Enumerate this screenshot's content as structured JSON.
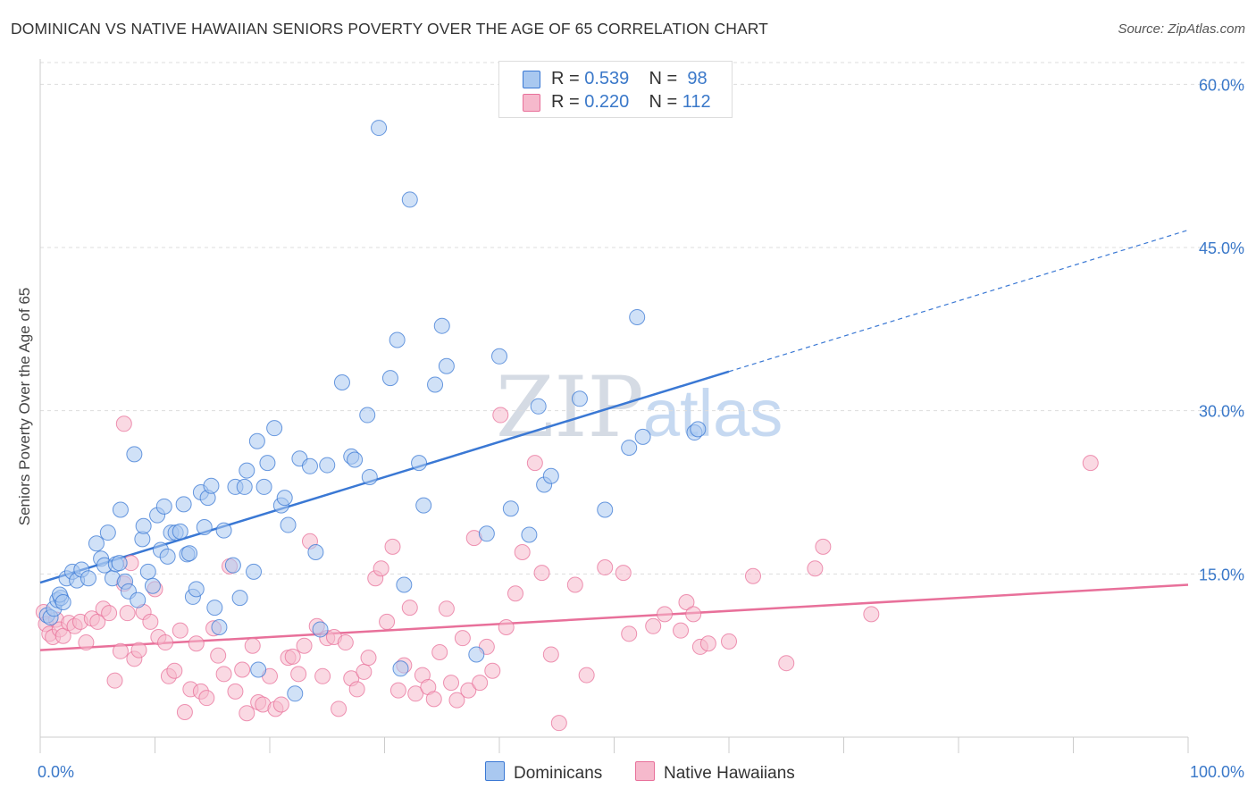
{
  "title": "DOMINICAN VS NATIVE HAWAIIAN SENIORS POVERTY OVER THE AGE OF 65 CORRELATION CHART",
  "source": "Source: ZipAtlas.com",
  "watermark": {
    "zip": "ZIP",
    "atlas": "atlas"
  },
  "legend": {
    "row1": {
      "r_label": "R = ",
      "r_value": "0.539",
      "n_label": "N = ",
      "n_value": "98"
    },
    "row2": {
      "r_label": "R = ",
      "r_value": "0.220",
      "n_label": "N = ",
      "n_value": "112"
    }
  },
  "bottom_legend": {
    "dominicans": "Dominicans",
    "native_hawaiians": "Native Hawaiians"
  },
  "colors": {
    "blue": "#3a78d4",
    "blue_fill": "#a9c8f0",
    "pink": "#e8709a",
    "pink_fill": "#f6b9cc",
    "axis_text": "#3a78c9",
    "grid": "#dddddd"
  },
  "chart_data": {
    "type": "scatter",
    "title": "DOMINICAN VS NATIVE HAWAIIAN SENIORS POVERTY OVER THE AGE OF 65 CORRELATION CHART",
    "xlabel": "",
    "ylabel": "Seniors Poverty Over the Age of 65",
    "xlim": [
      0,
      100
    ],
    "ylim": [
      0,
      62
    ],
    "x_tick_labels": [
      "0.0%",
      "100.0%"
    ],
    "y_ticks": [
      15,
      30,
      45,
      60
    ],
    "y_tick_labels": [
      "15.0%",
      "30.0%",
      "45.0%",
      "60.0%"
    ],
    "grid": true,
    "series": [
      {
        "name": "Dominicans",
        "R": 0.539,
        "N": 98,
        "trend": {
          "x0": 0,
          "y0": 14.2,
          "x1": 60,
          "y1": 33.6,
          "dashed_to_x": 100,
          "dashed_to_y": 46.6
        },
        "points": [
          [
            0.6,
            11.2
          ],
          [
            0.9,
            11.0
          ],
          [
            1.2,
            11.8
          ],
          [
            1.5,
            12.6
          ],
          [
            1.8,
            12.8
          ],
          [
            1.7,
            13.1
          ],
          [
            2.0,
            12.4
          ],
          [
            2.3,
            14.6
          ],
          [
            2.8,
            15.2
          ],
          [
            3.2,
            14.4
          ],
          [
            3.6,
            15.4
          ],
          [
            4.2,
            14.6
          ],
          [
            4.9,
            17.8
          ],
          [
            5.3,
            16.4
          ],
          [
            5.6,
            15.8
          ],
          [
            5.9,
            18.8
          ],
          [
            6.3,
            14.6
          ],
          [
            6.6,
            15.9
          ],
          [
            6.9,
            16.0
          ],
          [
            7.0,
            20.9
          ],
          [
            7.4,
            14.3
          ],
          [
            7.7,
            13.4
          ],
          [
            8.2,
            26.0
          ],
          [
            8.5,
            12.6
          ],
          [
            8.9,
            18.2
          ],
          [
            9.0,
            19.4
          ],
          [
            9.4,
            15.2
          ],
          [
            9.8,
            13.9
          ],
          [
            10.2,
            20.4
          ],
          [
            10.5,
            17.2
          ],
          [
            10.8,
            21.2
          ],
          [
            11.1,
            16.6
          ],
          [
            11.4,
            18.8
          ],
          [
            11.8,
            18.8
          ],
          [
            12.2,
            18.9
          ],
          [
            12.5,
            21.4
          ],
          [
            12.8,
            16.8
          ],
          [
            13.0,
            16.9
          ],
          [
            13.3,
            12.9
          ],
          [
            13.6,
            13.6
          ],
          [
            14.0,
            22.5
          ],
          [
            14.3,
            19.3
          ],
          [
            14.6,
            22.0
          ],
          [
            14.9,
            23.1
          ],
          [
            15.2,
            11.9
          ],
          [
            15.6,
            10.1
          ],
          [
            16.0,
            19.0
          ],
          [
            16.8,
            15.8
          ],
          [
            17.0,
            23.0
          ],
          [
            17.4,
            12.8
          ],
          [
            17.8,
            23.0
          ],
          [
            18.0,
            24.5
          ],
          [
            18.6,
            15.2
          ],
          [
            18.9,
            27.2
          ],
          [
            19.0,
            6.2
          ],
          [
            19.5,
            23.0
          ],
          [
            19.8,
            25.2
          ],
          [
            20.4,
            28.4
          ],
          [
            21.0,
            21.3
          ],
          [
            21.3,
            22.0
          ],
          [
            21.6,
            19.5
          ],
          [
            22.2,
            4.0
          ],
          [
            22.6,
            25.6
          ],
          [
            23.5,
            24.9
          ],
          [
            24.0,
            17.0
          ],
          [
            24.4,
            9.9
          ],
          [
            25.0,
            25.0
          ],
          [
            26.3,
            32.6
          ],
          [
            27.1,
            25.8
          ],
          [
            27.4,
            25.5
          ],
          [
            28.5,
            29.6
          ],
          [
            28.7,
            23.9
          ],
          [
            29.5,
            56.0
          ],
          [
            30.5,
            33.0
          ],
          [
            31.1,
            36.5
          ],
          [
            31.4,
            6.3
          ],
          [
            31.7,
            14.0
          ],
          [
            32.2,
            49.4
          ],
          [
            33.0,
            25.2
          ],
          [
            33.4,
            21.3
          ],
          [
            34.4,
            32.4
          ],
          [
            35.0,
            37.8
          ],
          [
            35.4,
            34.1
          ],
          [
            38.0,
            7.6
          ],
          [
            38.9,
            18.7
          ],
          [
            40.0,
            35.0
          ],
          [
            41.0,
            21.0
          ],
          [
            42.6,
            18.6
          ],
          [
            43.4,
            30.4
          ],
          [
            43.9,
            23.2
          ],
          [
            44.5,
            24.0
          ],
          [
            47.0,
            31.1
          ],
          [
            49.2,
            20.9
          ],
          [
            51.3,
            26.6
          ],
          [
            52.0,
            38.6
          ],
          [
            52.5,
            27.6
          ],
          [
            57.0,
            28.0
          ],
          [
            57.3,
            28.3
          ]
        ]
      },
      {
        "name": "Native Hawaiians",
        "R": 0.22,
        "N": 112,
        "trend": {
          "x0": 0,
          "y0": 8.0,
          "x1": 100,
          "y1": 14.0
        },
        "points": [
          [
            0.3,
            11.5
          ],
          [
            0.5,
            10.4
          ],
          [
            0.8,
            9.5
          ],
          [
            1.1,
            9.2
          ],
          [
            1.4,
            10.8
          ],
          [
            1.7,
            9.9
          ],
          [
            2.0,
            9.3
          ],
          [
            2.5,
            10.5
          ],
          [
            3.0,
            10.2
          ],
          [
            3.5,
            10.6
          ],
          [
            4.0,
            8.7
          ],
          [
            4.5,
            10.9
          ],
          [
            5.0,
            10.6
          ],
          [
            5.5,
            11.8
          ],
          [
            6.0,
            11.4
          ],
          [
            6.5,
            5.2
          ],
          [
            7.0,
            7.9
          ],
          [
            7.3,
            14.1
          ],
          [
            7.6,
            11.4
          ],
          [
            7.9,
            16.0
          ],
          [
            8.2,
            7.2
          ],
          [
            8.6,
            8.0
          ],
          [
            9.0,
            11.5
          ],
          [
            9.6,
            10.6
          ],
          [
            10.0,
            13.6
          ],
          [
            10.3,
            9.2
          ],
          [
            10.9,
            8.7
          ],
          [
            11.2,
            5.6
          ],
          [
            11.7,
            6.1
          ],
          [
            12.2,
            9.8
          ],
          [
            12.6,
            2.3
          ],
          [
            13.1,
            4.4
          ],
          [
            13.6,
            8.6
          ],
          [
            14.0,
            4.2
          ],
          [
            14.5,
            3.6
          ],
          [
            15.1,
            10.0
          ],
          [
            15.5,
            7.5
          ],
          [
            16.0,
            5.8
          ],
          [
            16.5,
            15.7
          ],
          [
            17.0,
            4.2
          ],
          [
            17.6,
            6.2
          ],
          [
            18.0,
            2.2
          ],
          [
            18.5,
            8.4
          ],
          [
            19.0,
            3.2
          ],
          [
            19.4,
            3.0
          ],
          [
            20.0,
            5.6
          ],
          [
            20.5,
            2.6
          ],
          [
            21.0,
            3.0
          ],
          [
            21.6,
            7.3
          ],
          [
            22.0,
            7.4
          ],
          [
            22.5,
            5.8
          ],
          [
            23.0,
            8.4
          ],
          [
            23.5,
            18.0
          ],
          [
            24.1,
            10.2
          ],
          [
            24.6,
            5.6
          ],
          [
            25.0,
            9.1
          ],
          [
            25.6,
            9.2
          ],
          [
            26.0,
            2.6
          ],
          [
            26.6,
            8.7
          ],
          [
            27.1,
            5.4
          ],
          [
            27.6,
            4.4
          ],
          [
            28.2,
            6.0
          ],
          [
            28.6,
            7.3
          ],
          [
            29.2,
            14.6
          ],
          [
            29.7,
            15.5
          ],
          [
            30.2,
            10.6
          ],
          [
            30.7,
            17.5
          ],
          [
            31.2,
            4.3
          ],
          [
            31.7,
            6.6
          ],
          [
            32.2,
            11.9
          ],
          [
            32.7,
            4.0
          ],
          [
            33.3,
            5.7
          ],
          [
            33.8,
            4.6
          ],
          [
            34.3,
            3.5
          ],
          [
            34.8,
            7.8
          ],
          [
            35.4,
            11.8
          ],
          [
            35.8,
            5.0
          ],
          [
            36.3,
            3.4
          ],
          [
            36.8,
            9.1
          ],
          [
            37.3,
            4.3
          ],
          [
            37.8,
            18.3
          ],
          [
            38.3,
            5.0
          ],
          [
            38.9,
            8.3
          ],
          [
            39.4,
            6.1
          ],
          [
            40.1,
            29.6
          ],
          [
            40.6,
            10.1
          ],
          [
            41.4,
            13.2
          ],
          [
            42.0,
            17.0
          ],
          [
            43.1,
            25.2
          ],
          [
            43.7,
            15.1
          ],
          [
            44.5,
            7.6
          ],
          [
            45.2,
            1.3
          ],
          [
            46.6,
            14.0
          ],
          [
            47.6,
            5.7
          ],
          [
            49.2,
            15.6
          ],
          [
            50.8,
            15.1
          ],
          [
            51.3,
            9.5
          ],
          [
            53.4,
            10.2
          ],
          [
            54.4,
            11.3
          ],
          [
            55.8,
            9.8
          ],
          [
            56.3,
            12.4
          ],
          [
            56.9,
            11.3
          ],
          [
            57.5,
            8.3
          ],
          [
            58.2,
            8.6
          ],
          [
            60.0,
            8.8
          ],
          [
            62.1,
            14.8
          ],
          [
            65.0,
            6.8
          ],
          [
            67.5,
            15.5
          ],
          [
            68.2,
            17.5
          ],
          [
            72.4,
            11.3
          ],
          [
            91.5,
            25.2
          ],
          [
            7.3,
            28.8
          ]
        ]
      }
    ]
  }
}
